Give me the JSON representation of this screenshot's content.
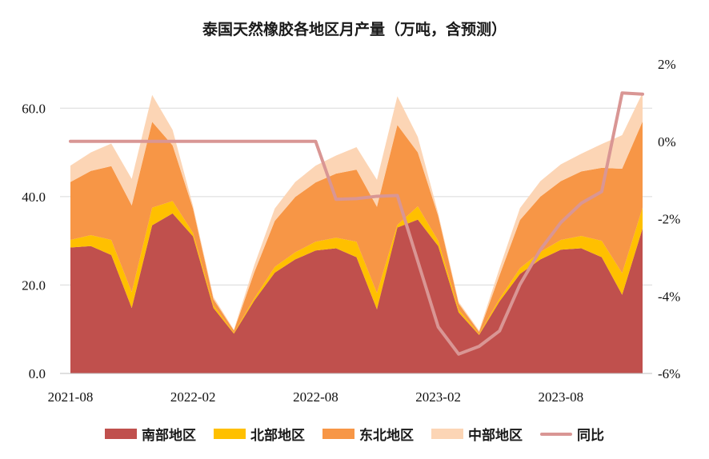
{
  "colors": {
    "south": "#c0504d",
    "north": "#ffc000",
    "northeast": "#f79646",
    "central": "#fcd5b5",
    "yoy": "#d99694"
  },
  "chart_data": {
    "type": "area",
    "title": "泰国天然橡胶各地区月产量（万吨，含预测）",
    "x": [
      "2021-08",
      "2021-09",
      "2021-10",
      "2021-11",
      "2021-12",
      "2022-01",
      "2022-02",
      "2022-03",
      "2022-04",
      "2022-05",
      "2022-06",
      "2022-07",
      "2022-08",
      "2022-09",
      "2022-10",
      "2022-11",
      "2022-12",
      "2023-01",
      "2023-02",
      "2023-03",
      "2023-04",
      "2023-05",
      "2023-06",
      "2023-07",
      "2023-08",
      "2023-09",
      "2023-10",
      "2023-11",
      "2023-12"
    ],
    "x_tick_labels": [
      "2021-08",
      "2022-02",
      "2022-08",
      "2023-02",
      "2023-08"
    ],
    "y_left_ticks": [
      "0.0",
      "20.0",
      "40.0",
      "60.0"
    ],
    "y_left_lim": [
      0,
      70
    ],
    "y_right_ticks": [
      "-6%",
      "-4%",
      "-2%",
      "0%",
      "2%"
    ],
    "y_right_lim": [
      -6,
      2
    ],
    "stacked": true,
    "grid": true,
    "legend_position": "bottom",
    "series": [
      {
        "name": "南部地区",
        "key": "south",
        "axis": "left",
        "values": [
          28.5,
          28.8,
          26.8,
          14.8,
          33.5,
          36.2,
          31.0,
          14.8,
          9.0,
          16.5,
          22.8,
          25.8,
          27.8,
          28.3,
          26.3,
          14.5,
          33.0,
          34.8,
          28.8,
          13.8,
          8.7,
          16.3,
          22.5,
          25.8,
          28.0,
          28.3,
          26.3,
          17.8,
          32.8
        ]
      },
      {
        "name": "北部地区",
        "key": "north",
        "axis": "left",
        "values": [
          1.7,
          2.5,
          3.4,
          3.6,
          4.0,
          2.8,
          0.8,
          0.6,
          0.2,
          0.5,
          1.3,
          1.6,
          2.0,
          2.4,
          3.5,
          3.7,
          0.6,
          3.0,
          1.2,
          0.6,
          0.2,
          0.6,
          1.3,
          1.7,
          2.2,
          2.8,
          3.7,
          4.9,
          4.7
        ]
      },
      {
        "name": "东北地区",
        "key": "northeast",
        "axis": "left",
        "values": [
          13.1,
          14.5,
          16.7,
          19.6,
          19.4,
          12.6,
          5.5,
          1.4,
          0.5,
          5.9,
          10.4,
          12.5,
          13.4,
          14.5,
          16.3,
          19.5,
          22.6,
          12.2,
          5.6,
          1.4,
          0.5,
          5.3,
          10.9,
          12.5,
          13.3,
          14.6,
          16.5,
          23.6,
          19.5
        ]
      },
      {
        "name": "中部地区",
        "key": "central",
        "axis": "left",
        "values": [
          3.7,
          4.2,
          5.1,
          6.0,
          6.1,
          3.5,
          0.6,
          0.5,
          0.2,
          1.6,
          2.8,
          3.4,
          3.8,
          4.1,
          5.1,
          6.1,
          6.5,
          3.5,
          0.6,
          0.4,
          0.3,
          1.6,
          2.7,
          3.5,
          3.8,
          4.0,
          5.4,
          7.6,
          6.5
        ]
      },
      {
        "name": "同比",
        "key": "yoy",
        "axis": "right",
        "type": "line",
        "values": [
          0,
          0,
          0,
          0,
          0,
          0,
          0,
          0,
          0,
          0,
          0,
          0,
          0,
          -1.5,
          -1.48,
          -1.42,
          -1.4,
          -3.1,
          -4.8,
          -5.5,
          -5.3,
          -4.9,
          -3.7,
          -2.8,
          -2.1,
          -1.6,
          -1.3,
          1.25,
          1.22
        ]
      }
    ]
  }
}
